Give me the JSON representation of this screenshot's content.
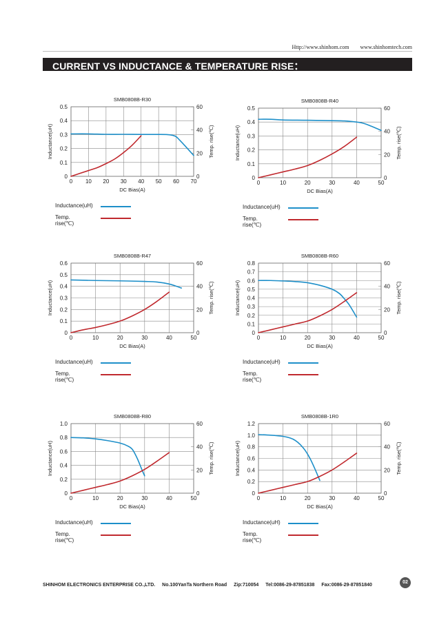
{
  "header": {
    "url1": "Http://www.shinhom.com",
    "url2": "www.shinhomtech.com",
    "banner_title": "CURRENT VS INDUCTANCE & TEMPERATURE RISE："
  },
  "colors": {
    "inductance": "#1d8fc9",
    "temperature": "#c0282d",
    "grid": "#888888",
    "banner_bg": "#231f20"
  },
  "legend": {
    "inductance_label": "Inductance(uH)",
    "temp_label": "Temp. rise(℃)"
  },
  "chart_data": [
    {
      "type": "line",
      "title": "SMB0808B-R30",
      "xlabel": "DC Bias(A)",
      "ylabel": "Inductance(uH)",
      "y2label": "Temp. rise(℃)",
      "xlim": [
        0,
        70
      ],
      "xticks": [
        0,
        10,
        20,
        30,
        40,
        50,
        60,
        70
      ],
      "ylim": [
        0,
        0.5
      ],
      "yticks": [
        "0",
        "0.1",
        "0.2",
        "0.3",
        "0.4",
        "0.5"
      ],
      "y2lim": [
        0,
        60
      ],
      "y2ticks": [
        "0",
        "20",
        "40",
        "60"
      ],
      "grid": true,
      "series": [
        {
          "name": "Inductance(uH)",
          "axis": "left",
          "x": [
            0,
            10,
            20,
            30,
            40,
            50,
            55,
            58,
            60,
            62,
            65,
            70
          ],
          "y": [
            0.305,
            0.305,
            0.302,
            0.302,
            0.301,
            0.301,
            0.3,
            0.295,
            0.285,
            0.26,
            0.22,
            0.15
          ]
        },
        {
          "name": "Temp. rise(℃)",
          "axis": "right",
          "x": [
            0,
            5,
            10,
            15,
            20,
            25,
            30,
            35,
            40
          ],
          "y": [
            0,
            2.5,
            5,
            7.5,
            11,
            15,
            20.5,
            27,
            35
          ]
        }
      ]
    },
    {
      "type": "line",
      "title": "SMB0808B-R40",
      "xlabel": "DC Bias(A)",
      "ylabel": "Inductance(uH)",
      "y2label": "Temp. rise(℃)",
      "xlim": [
        0,
        50
      ],
      "xticks": [
        0,
        10,
        20,
        30,
        40,
        50
      ],
      "ylim": [
        0,
        0.5
      ],
      "yticks": [
        "0",
        "0.1",
        "0.2",
        "0.3",
        "0.4",
        "0.5"
      ],
      "y2lim": [
        0,
        60
      ],
      "y2ticks": [
        "0",
        "20",
        "40",
        "60"
      ],
      "grid": true,
      "series": [
        {
          "name": "Inductance(uH)",
          "axis": "left",
          "x": [
            0,
            5,
            10,
            20,
            30,
            35,
            40,
            43,
            46,
            50
          ],
          "y": [
            0.42,
            0.42,
            0.415,
            0.413,
            0.41,
            0.408,
            0.4,
            0.39,
            0.37,
            0.34
          ]
        },
        {
          "name": "Temp. rise(℃)",
          "axis": "right",
          "x": [
            0,
            5,
            10,
            15,
            20,
            25,
            30,
            35,
            40
          ],
          "y": [
            0,
            2.5,
            5,
            7.5,
            10.5,
            15,
            20.5,
            27,
            35
          ]
        }
      ]
    },
    {
      "type": "line",
      "title": "SMB0808B-R47",
      "xlabel": "DC Bias(A)",
      "ylabel": "Inductance(uH)",
      "y2label": "Temp. rise(℃)",
      "xlim": [
        0,
        50
      ],
      "xticks": [
        0,
        10,
        20,
        30,
        40,
        50
      ],
      "ylim": [
        0,
        0.6
      ],
      "yticks": [
        "0",
        "0.1",
        "0.2",
        "0.3",
        "0.4",
        "0.5",
        "0.6"
      ],
      "y2lim": [
        0,
        60
      ],
      "y2ticks": [
        "0",
        "20",
        "40",
        "60"
      ],
      "grid": true,
      "series": [
        {
          "name": "Inductance(uH)",
          "axis": "left",
          "x": [
            0,
            10,
            20,
            30,
            35,
            40,
            43,
            45
          ],
          "y": [
            0.455,
            0.45,
            0.447,
            0.442,
            0.437,
            0.42,
            0.4,
            0.385
          ]
        },
        {
          "name": "Temp. rise(℃)",
          "axis": "right",
          "x": [
            0,
            5,
            10,
            15,
            20,
            25,
            30,
            35,
            40
          ],
          "y": [
            0,
            2.5,
            4.5,
            7,
            10,
            14.5,
            20,
            27,
            35
          ]
        }
      ]
    },
    {
      "type": "line",
      "title": "SMB0808B-R60",
      "xlabel": "DC Bias(A)",
      "ylabel": "Inductance(uH)",
      "y2label": "Temp. rise(℃)",
      "xlim": [
        0,
        50
      ],
      "xticks": [
        0,
        10,
        20,
        30,
        40,
        50
      ],
      "ylim": [
        0,
        0.8
      ],
      "yticks": [
        "0",
        "0.1",
        "0.2",
        "0.3",
        "0.4",
        "0.5",
        "0.6",
        "0.7",
        "0.8"
      ],
      "y2lim": [
        0,
        60
      ],
      "y2ticks": [
        "0",
        "20",
        "40",
        "60"
      ],
      "grid": true,
      "series": [
        {
          "name": "Inductance(uH)",
          "axis": "left",
          "x": [
            0,
            5,
            10,
            15,
            20,
            25,
            30,
            33,
            35,
            37,
            40
          ],
          "y": [
            0.6,
            0.6,
            0.595,
            0.588,
            0.575,
            0.545,
            0.5,
            0.45,
            0.39,
            0.32,
            0.18
          ]
        },
        {
          "name": "Temp. rise(℃)",
          "axis": "right",
          "x": [
            0,
            5,
            10,
            15,
            20,
            25,
            30,
            35,
            40
          ],
          "y": [
            0,
            2.5,
            5,
            7.5,
            10,
            14.5,
            20,
            27,
            34.5
          ]
        }
      ]
    },
    {
      "type": "line",
      "title": "SMB0808B-R80",
      "xlabel": "DC Bias(A)",
      "ylabel": "Inductance(uH)",
      "y2label": "Temp. rise(℃)",
      "xlim": [
        0,
        50
      ],
      "xticks": [
        0,
        10,
        20,
        30,
        40,
        50
      ],
      "ylim": [
        0,
        1.0
      ],
      "yticks": [
        "0",
        "0.2",
        "0.4",
        "0.6",
        "0.8",
        "1.0"
      ],
      "y2lim": [
        0,
        60
      ],
      "y2ticks": [
        "0",
        "20",
        "40",
        "60"
      ],
      "grid": true,
      "series": [
        {
          "name": "Inductance(uH)",
          "axis": "left",
          "x": [
            0,
            5,
            10,
            15,
            20,
            23,
            25,
            27,
            29,
            30
          ],
          "y": [
            0.8,
            0.795,
            0.78,
            0.755,
            0.72,
            0.68,
            0.63,
            0.5,
            0.33,
            0.25
          ]
        },
        {
          "name": "Temp. rise(℃)",
          "axis": "right",
          "x": [
            0,
            5,
            10,
            15,
            20,
            25,
            30,
            35,
            40
          ],
          "y": [
            0,
            2.5,
            5,
            7.5,
            10.5,
            15,
            20.5,
            27.5,
            35
          ]
        }
      ]
    },
    {
      "type": "line",
      "title": "SMB0808B-1R0",
      "xlabel": "DC Bias(A)",
      "ylabel": "Inductance(uH)",
      "y2label": "Temp. rise(℃)",
      "xlim": [
        0,
        50
      ],
      "xticks": [
        0,
        10,
        20,
        30,
        40,
        50
      ],
      "ylim": [
        0,
        1.2
      ],
      "yticks": [
        "0",
        "0.2",
        "0.4",
        "0.6",
        "0.8",
        "1.0",
        "1.2"
      ],
      "y2lim": [
        0,
        60
      ],
      "y2ticks": [
        "0",
        "20",
        "40",
        "60"
      ],
      "grid": true,
      "series": [
        {
          "name": "Inductance(uH)",
          "axis": "left",
          "x": [
            0,
            5,
            10,
            13,
            15,
            17,
            19,
            21,
            23,
            25
          ],
          "y": [
            1.01,
            1.0,
            0.98,
            0.95,
            0.91,
            0.84,
            0.74,
            0.6,
            0.42,
            0.22
          ]
        },
        {
          "name": "Temp. rise(℃)",
          "axis": "right",
          "x": [
            0,
            5,
            10,
            15,
            20,
            25,
            30,
            35,
            40
          ],
          "y": [
            0,
            2.5,
            5,
            7.5,
            10,
            14.5,
            20,
            27,
            34.5
          ]
        }
      ]
    }
  ],
  "footer": {
    "company": "SHINHOM ELECTRONICS ENTERPRISE CO.,LTD.",
    "address": "No.100YanTa Northern Road",
    "zip": "Zip:710054",
    "tel": "Tel:0086-29-87851838",
    "fax": "Fax:0086-29-87851840",
    "page_number": "02"
  }
}
